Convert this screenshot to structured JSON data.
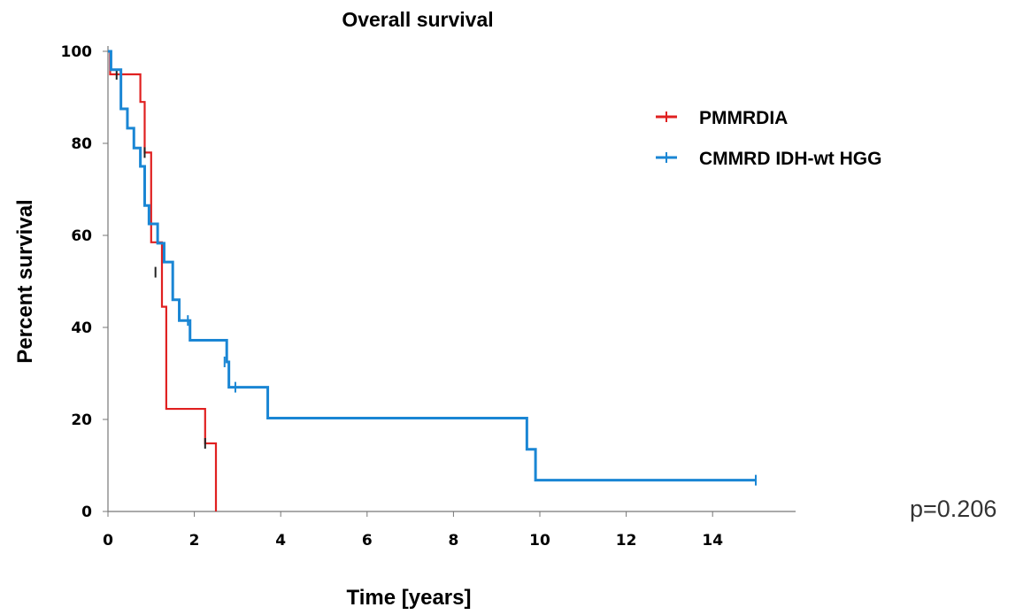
{
  "chart_data": {
    "type": "line",
    "subtype": "kaplan-meier",
    "title": "Overall survival",
    "xlabel": "Time [years]",
    "ylabel": "Percent survival",
    "xlim": [
      0,
      16
    ],
    "ylim": [
      0,
      100
    ],
    "xticks": [
      "0",
      "2",
      "4",
      "6",
      "8",
      "10",
      "12",
      "14"
    ],
    "yticks": [
      "0",
      "20",
      "40",
      "60",
      "80",
      "100"
    ],
    "grid": false,
    "legend_position": "top-right",
    "annotation": "p=0.206",
    "series": [
      {
        "name": "PMMRDIA",
        "color": "#e02020",
        "steps": [
          [
            0,
            100
          ],
          [
            0.05,
            95
          ],
          [
            0.75,
            89
          ],
          [
            0.85,
            78
          ],
          [
            1.0,
            58.5
          ],
          [
            1.25,
            44.5
          ],
          [
            1.35,
            22.3
          ],
          [
            2.25,
            14.8
          ],
          [
            2.5,
            0
          ]
        ],
        "censored": [
          [
            0.2,
            95
          ],
          [
            0.85,
            78
          ],
          [
            1.1,
            52
          ],
          [
            2.25,
            14.8
          ]
        ]
      },
      {
        "name": "CMMRD IDH-wt HGG",
        "color": "#1a86d4",
        "steps": [
          [
            0,
            100
          ],
          [
            0.07,
            96
          ],
          [
            0.3,
            87.5
          ],
          [
            0.45,
            83.3
          ],
          [
            0.6,
            79
          ],
          [
            0.75,
            75
          ],
          [
            0.85,
            66.5
          ],
          [
            0.95,
            62.5
          ],
          [
            1.15,
            58.3
          ],
          [
            1.3,
            54.2
          ],
          [
            1.5,
            46
          ],
          [
            1.65,
            41.5
          ],
          [
            1.9,
            37.2
          ],
          [
            2.75,
            32.5
          ],
          [
            2.8,
            27
          ],
          [
            3.7,
            20.3
          ],
          [
            9.7,
            13.5
          ],
          [
            9.9,
            6.8
          ]
        ],
        "end_x": 15.0,
        "censored": [
          [
            1.85,
            41.5
          ],
          [
            2.7,
            32.5
          ],
          [
            2.95,
            27
          ],
          [
            15.0,
            6.8
          ]
        ]
      }
    ]
  }
}
